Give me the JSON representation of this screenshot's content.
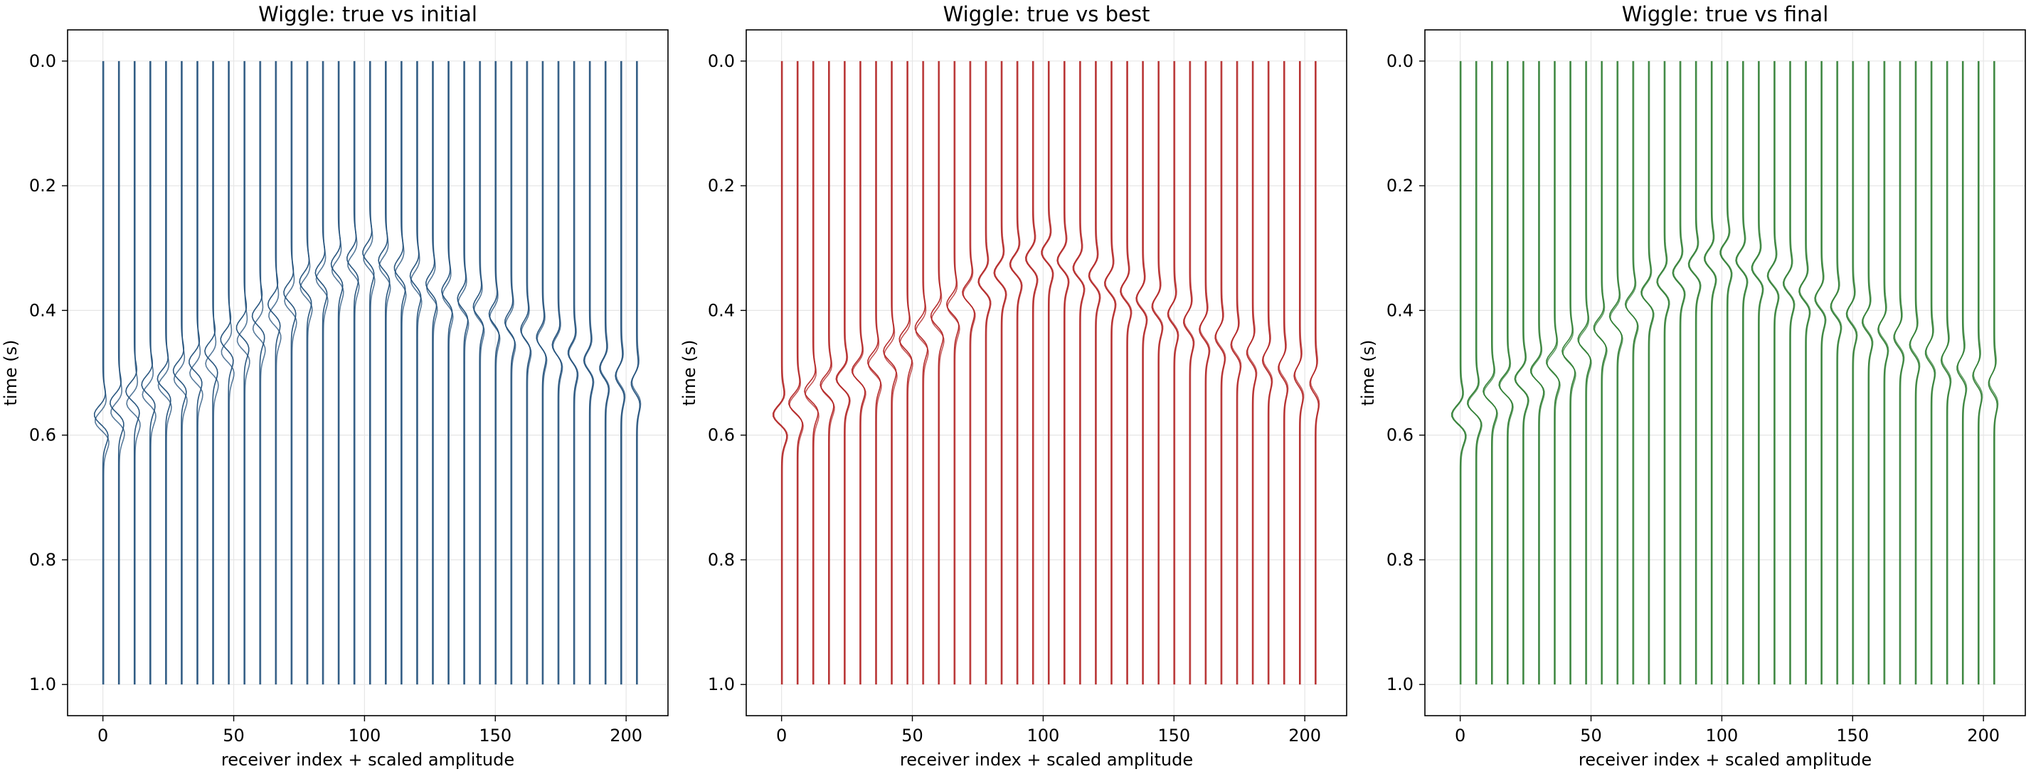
{
  "chart_data": [
    {
      "type": "line",
      "title": "Wiggle: true vs initial",
      "xlabel": "receiver index + scaled amplitude",
      "ylabel": "time (s)",
      "xlim": [
        -13.5,
        216
      ],
      "ylim": [
        1.05,
        -0.05
      ],
      "y_inverted": true,
      "xticks": [
        0,
        50,
        100,
        150,
        200
      ],
      "yticks": [
        0.0,
        0.2,
        0.4,
        0.6,
        0.8,
        1.0
      ],
      "xtick_labels": [
        "0",
        "50",
        "100",
        "150",
        "200"
      ],
      "ytick_labels": [
        "0.0",
        "0.2",
        "0.4",
        "0.6",
        "0.8",
        "1.0"
      ],
      "grid": true,
      "trace_color": "#1f4e79",
      "receiver_step": 6,
      "receiver_count": 35,
      "t_range": [
        0.0,
        1.0
      ],
      "series": [
        {
          "name": "true",
          "traveltime": [
            0.57,
            0.53,
            0.51,
            0.48,
            0.44,
            0.4,
            0.36,
            0.33,
            0.31
          ]
        },
        {
          "name": "initial",
          "traveltime": [
            0.58,
            0.55,
            0.52,
            0.5,
            0.46,
            0.42,
            0.37,
            0.34,
            0.32
          ]
        }
      ]
    },
    {
      "type": "line",
      "title": "Wiggle: true vs best",
      "xlabel": "receiver index + scaled amplitude",
      "ylabel": "time (s)",
      "xlim": [
        -13.5,
        216
      ],
      "ylim": [
        1.05,
        -0.05
      ],
      "y_inverted": true,
      "xticks": [
        0,
        50,
        100,
        150,
        200
      ],
      "yticks": [
        0.0,
        0.2,
        0.4,
        0.6,
        0.8,
        1.0
      ],
      "xtick_labels": [
        "0",
        "50",
        "100",
        "150",
        "200"
      ],
      "ytick_labels": [
        "0.0",
        "0.2",
        "0.4",
        "0.6",
        "0.8",
        "1.0"
      ],
      "grid": true,
      "trace_color": "#b22222",
      "receiver_step": 6,
      "receiver_count": 35,
      "t_range": [
        0.0,
        1.0
      ],
      "series": [
        {
          "name": "true",
          "traveltime": [
            0.57,
            0.53,
            0.51,
            0.48,
            0.44,
            0.4,
            0.36,
            0.33,
            0.31
          ]
        },
        {
          "name": "best",
          "traveltime": [
            0.57,
            0.535,
            0.51,
            0.485,
            0.445,
            0.405,
            0.36,
            0.33,
            0.31
          ]
        }
      ]
    },
    {
      "type": "line",
      "title": "Wiggle: true vs final",
      "xlabel": "receiver index + scaled amplitude",
      "ylabel": "time (s)",
      "xlim": [
        -13.5,
        216
      ],
      "ylim": [
        1.05,
        -0.05
      ],
      "y_inverted": true,
      "xticks": [
        0,
        50,
        100,
        150,
        200
      ],
      "yticks": [
        0.0,
        0.2,
        0.4,
        0.6,
        0.8,
        1.0
      ],
      "xtick_labels": [
        "0",
        "50",
        "100",
        "150",
        "200"
      ],
      "ytick_labels": [
        "0.0",
        "0.2",
        "0.4",
        "0.6",
        "0.8",
        "1.0"
      ],
      "grid": true,
      "trace_color": "#2e7d32",
      "receiver_step": 6,
      "receiver_count": 35,
      "t_range": [
        0.0,
        1.0
      ],
      "series": [
        {
          "name": "true",
          "traveltime": [
            0.57,
            0.53,
            0.51,
            0.48,
            0.44,
            0.4,
            0.36,
            0.33,
            0.31
          ]
        },
        {
          "name": "final",
          "traveltime": [
            0.57,
            0.532,
            0.51,
            0.483,
            0.442,
            0.402,
            0.36,
            0.33,
            0.31
          ]
        }
      ]
    }
  ]
}
